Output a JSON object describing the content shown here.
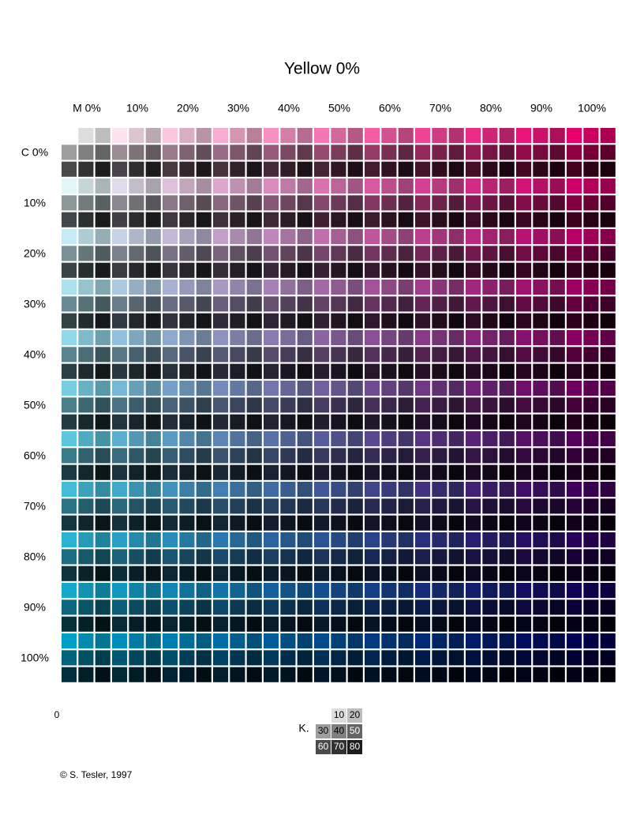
{
  "title": "Yellow 0%",
  "magenta_labels": [
    "M 0%",
    "10%",
    "20%",
    "30%",
    "40%",
    "50%",
    "60%",
    "70%",
    "80%",
    "90%",
    "100%"
  ],
  "cyan_labels": [
    "C 0%",
    "10%",
    "20%",
    "30%",
    "40%",
    "50%",
    "60%",
    "70%",
    "80%",
    "90%",
    "100%"
  ],
  "magenta_levels": [
    0,
    10,
    20,
    30,
    40,
    50,
    60,
    70,
    80,
    90,
    100
  ],
  "cyan_levels": [
    0,
    10,
    20,
    30,
    40,
    50,
    60,
    70,
    80,
    90,
    100
  ],
  "yellow_level": 0,
  "k_levels": [
    0,
    10,
    20,
    30,
    40,
    50,
    60,
    70,
    80
  ],
  "k_label": "K.",
  "copyright": "© S. Tesler, 1997"
}
